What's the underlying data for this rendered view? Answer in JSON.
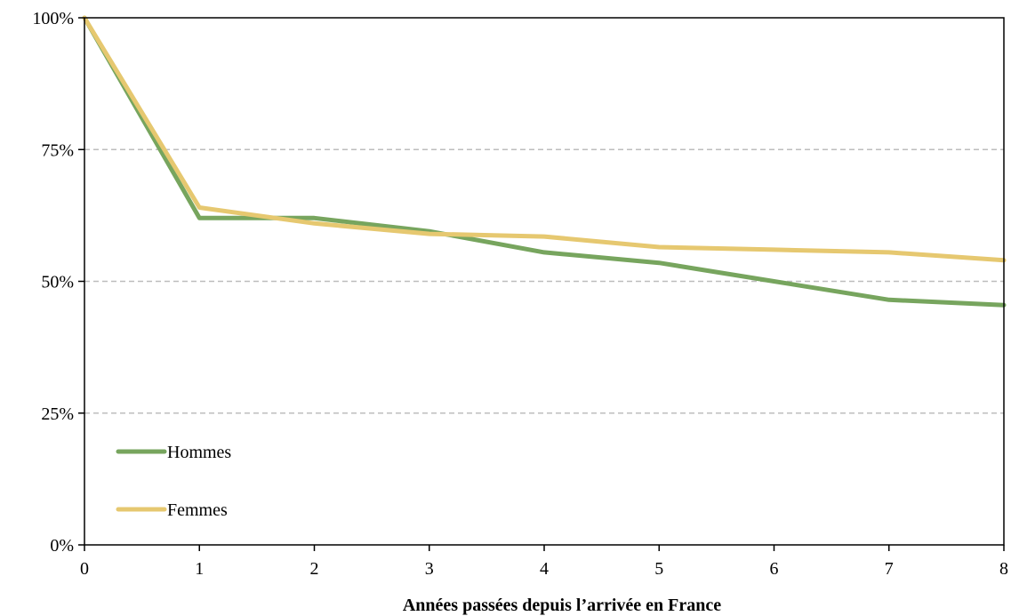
{
  "chart_data": {
    "type": "line",
    "title": "",
    "xlabel": "Années passées depuis l’arrivée en France",
    "ylabel": "",
    "x": [
      0,
      1,
      2,
      3,
      4,
      5,
      6,
      7,
      8
    ],
    "xlim": [
      0,
      8
    ],
    "ylim": [
      0,
      100
    ],
    "y_ticks": [
      0,
      25,
      50,
      75,
      100
    ],
    "y_tick_labels": [
      "0%",
      "25%",
      "50%",
      "75%",
      "100%"
    ],
    "x_tick_labels": [
      "0",
      "1",
      "2",
      "3",
      "4",
      "5",
      "6",
      "7",
      "8"
    ],
    "grid": "horizontal dashed",
    "legend_position": "bottom-left",
    "series": [
      {
        "name": "Hommes",
        "color": "#77a55e",
        "values": [
          100,
          62,
          62,
          59.5,
          55.5,
          53.5,
          50,
          46.5,
          45.5
        ]
      },
      {
        "name": "Femmes",
        "color": "#e6c870",
        "values": [
          100,
          64,
          61,
          59,
          58.5,
          56.5,
          56,
          55.5,
          54
        ]
      }
    ]
  }
}
